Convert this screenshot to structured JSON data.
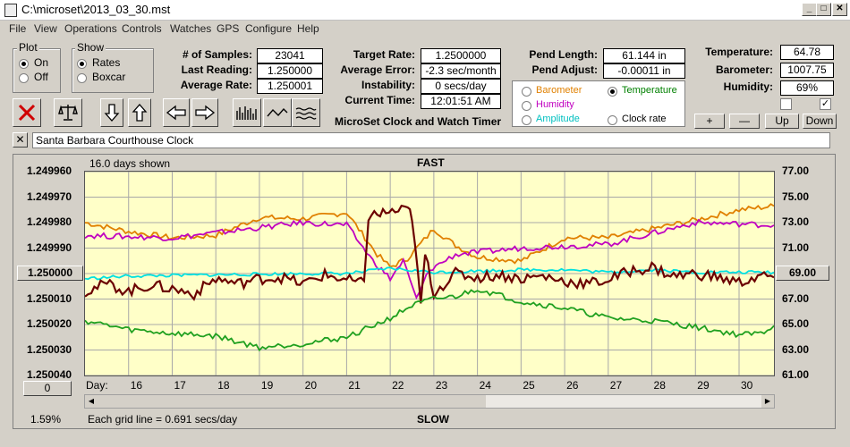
{
  "window": {
    "title": "C:\\microset\\2013_03_30.mst"
  },
  "menu": [
    "File",
    "View",
    "Operations",
    "Controls",
    "Watches",
    "GPS",
    "Configure",
    "Help"
  ],
  "plot_group": {
    "title": "Plot",
    "on": "On",
    "off": "Off",
    "selected": "On"
  },
  "show_group": {
    "title": "Show",
    "rates": "Rates",
    "boxcar": "Boxcar",
    "selected": "Rates"
  },
  "stats": {
    "samples_label": "# of Samples:",
    "samples": "23041",
    "last_reading_label": "Last Reading:",
    "last_reading": "1.250000",
    "average_rate_label": "Average Rate:",
    "average_rate": "1.250001",
    "target_rate_label": "Target Rate:",
    "target_rate": "1.2500000",
    "average_error_label": "Average Error:",
    "average_error": "-2.3 sec/month",
    "instability_label": "Instability:",
    "instability": "0 secs/day",
    "current_time_label": "Current Time:",
    "current_time": "12:01:51 AM",
    "pend_length_label": "Pend Length:",
    "pend_length": "61.144 in",
    "pend_adjust_label": "Pend Adjust:",
    "pend_adjust": "-0.00011 in",
    "temperature_label": "Temperature:",
    "temperature": "64.78",
    "barometer_label": "Barometer:",
    "barometer": "1007.75",
    "humidity_label": "Humidity:",
    "humidity": "69%"
  },
  "app_caption": "MicroSet Clock and Watch Timer",
  "secondary": {
    "barometer": "Barometer",
    "temperature": "Temperature",
    "humidity": "Humidity",
    "amplitude": "Amplitude",
    "clock_rate": "Clock rate",
    "selected": "Temperature",
    "colors": {
      "barometer": "#e08000",
      "temperature": "#008000",
      "humidity": "#c000c0",
      "amplitude": "#00c0c0",
      "clock_rate": "#000000"
    }
  },
  "scale_buttons": {
    "plus": "+",
    "minus": "—",
    "up": "Up",
    "down": "Down"
  },
  "checkboxes": [
    {
      "checked": false
    },
    {
      "checked": true
    }
  ],
  "clock_name": "Santa Barbara Courthouse Clock",
  "status": {
    "days_shown": "16.0 days shown",
    "fast": "FAST",
    "slow": "SLOW",
    "grid_note": "Each grid line = 0.691 secs/day",
    "percent": "1.59%",
    "left_button_value": "0",
    "center_rate": "1.250000",
    "center_temp": "69.00"
  },
  "chart_data": {
    "type": "line",
    "x_label": "Day:",
    "x_ticks": [
      "16",
      "17",
      "18",
      "19",
      "20",
      "21",
      "22",
      "23",
      "24",
      "25",
      "26",
      "27",
      "28",
      "29",
      "30"
    ],
    "left_axis": {
      "ticks": [
        "1.249960",
        "1.249970",
        "1.249980",
        "1.249990",
        "1.250000",
        "1.250010",
        "1.250020",
        "1.250030",
        "1.250040"
      ],
      "range": [
        1.24996,
        1.25004
      ],
      "inverted": true
    },
    "right_axis": {
      "ticks": [
        "77.00",
        "75.00",
        "73.00",
        "71.00",
        "69.00",
        "67.00",
        "65.00",
        "63.00",
        "61.00"
      ],
      "range": [
        61,
        77
      ]
    },
    "series": [
      {
        "color": "#e08000",
        "x": [
          15.0,
          16,
          17,
          18,
          19,
          20,
          21,
          21.7,
          22,
          22.4,
          23,
          23.5,
          24,
          25,
          26,
          27,
          28,
          29,
          30,
          30.8
        ],
        "values": [
          73.0,
          72.3,
          71.8,
          72.0,
          73.4,
          73.3,
          73.8,
          70.5,
          69.5,
          70.2,
          72.5,
          71.2,
          70.3,
          70.0,
          71.8,
          71.8,
          72.5,
          73.2,
          74.0,
          74.3
        ]
      },
      {
        "color": "#c000c0",
        "x": [
          15.0,
          17,
          19,
          20,
          21,
          21.6,
          22,
          22.3,
          22.6,
          22.9,
          23.5,
          25,
          27,
          29,
          30,
          30.8
        ],
        "values": [
          72.0,
          71.8,
          72.6,
          73.0,
          72.8,
          70.0,
          68.6,
          70.0,
          67.0,
          69.3,
          70.5,
          71.0,
          71.3,
          73.0,
          72.9,
          72.8
        ]
      },
      {
        "color": "#00e0e0",
        "x": [
          15.0,
          16,
          18,
          20,
          21,
          22,
          23,
          24,
          25,
          26,
          27,
          28,
          29,
          30,
          30.8
        ],
        "values": [
          68.6,
          68.8,
          68.9,
          69.0,
          69.0,
          69.4,
          69.1,
          69.2,
          69.3,
          69.3,
          69.1,
          69.3,
          69.1,
          69.1,
          69.1
        ]
      },
      {
        "color": "#6b0000",
        "x": [
          15.0,
          15.5,
          16,
          16.5,
          17,
          17.5,
          18,
          18.5,
          19,
          19.5,
          20,
          20.5,
          21,
          21.4,
          21.5,
          21.9,
          22.4,
          22.5,
          22.7,
          22.8,
          23,
          23.5,
          24,
          24.5,
          25,
          25.5,
          26,
          26.5,
          27,
          27.5,
          28,
          28.5,
          29,
          29.5,
          30,
          30.5,
          30.8
        ],
        "values": [
          67.6,
          68.2,
          67.6,
          68.1,
          67.8,
          67.4,
          68.6,
          68.2,
          68.6,
          68.7,
          68.2,
          68.9,
          68.5,
          68.2,
          73.5,
          73.8,
          74.0,
          73.5,
          66.5,
          70.5,
          67.5,
          69.0,
          68.7,
          68.9,
          68.6,
          68.8,
          68.4,
          68.2,
          68.5,
          69.2,
          69.5,
          68.8,
          69.0,
          68.7,
          68.3,
          68.8,
          68.7
        ]
      },
      {
        "color": "#20a020",
        "x": [
          15.0,
          16,
          17,
          18,
          19,
          20,
          21,
          22,
          22.5,
          23,
          23.5,
          24,
          25,
          26,
          27,
          28,
          29,
          30,
          30.5,
          30.8
        ],
        "values": [
          65.3,
          64.6,
          64.3,
          64.1,
          63.2,
          63.5,
          64.0,
          65.5,
          66.5,
          67.0,
          67.2,
          67.8,
          66.8,
          66.3,
          65.5,
          65.3,
          64.8,
          64.2,
          64.3,
          64.9
        ]
      }
    ]
  }
}
